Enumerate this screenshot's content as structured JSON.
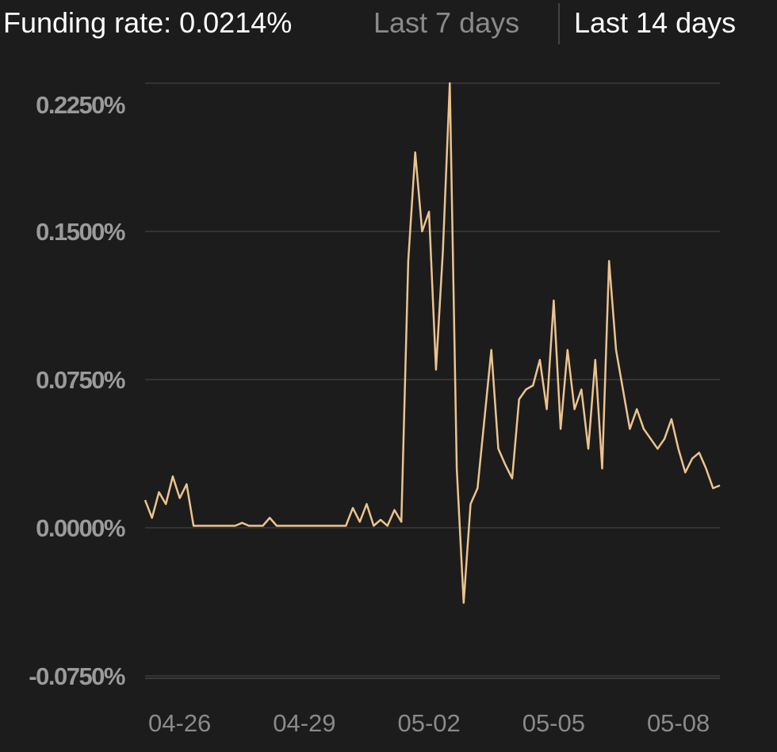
{
  "header": {
    "title": "Funding rate: 0.0214%",
    "buttons": [
      "Last 7 days",
      "Last 14 days"
    ]
  },
  "chart_data": {
    "type": "line",
    "color": "#ecc38e",
    "grid": true,
    "categories": [
      null,
      null,
      null,
      null,
      null,
      "04-26",
      null,
      null,
      null,
      null,
      null,
      null,
      null,
      null,
      null,
      null,
      null,
      null,
      null,
      null,
      null,
      null,
      null,
      "04-29",
      null,
      null,
      null,
      null,
      null,
      null,
      null,
      null,
      null,
      null,
      null,
      null,
      null,
      null,
      null,
      null,
      null,
      "05-02",
      null,
      null,
      null,
      null,
      null,
      null,
      null,
      null,
      null,
      null,
      null,
      null,
      null,
      null,
      null,
      null,
      null,
      "05-05",
      null,
      null,
      null,
      null,
      null,
      null,
      null,
      null,
      null,
      null,
      null,
      null,
      null,
      null,
      null,
      null,
      null,
      "05-08",
      null,
      null,
      null,
      null,
      null,
      null
    ],
    "values": [
      0.014,
      0.005,
      0.018,
      0.012,
      0.026,
      0.015,
      0.022,
      0.001,
      0.001,
      0.001,
      0.001,
      0.001,
      0.001,
      0.001,
      0.0025,
      0.001,
      0.001,
      0.001,
      0.005,
      0.001,
      0.001,
      0.001,
      0.001,
      0.001,
      0.001,
      0.001,
      0.001,
      0.001,
      0.001,
      0.001,
      0.01,
      0.003,
      0.012,
      0.001,
      0.004,
      0.001,
      0.009,
      0.003,
      0.135,
      0.19,
      0.15,
      0.16,
      0.08,
      0.14,
      0.225,
      0.03,
      -0.038,
      0.012,
      0.02,
      0.055,
      0.09,
      0.04,
      0.032,
      0.025,
      0.065,
      0.07,
      0.072,
      0.085,
      0.06,
      0.115,
      0.05,
      0.09,
      0.06,
      0.07,
      0.04,
      0.085,
      0.03,
      0.135,
      0.09,
      0.07,
      0.05,
      0.06,
      0.05,
      0.045,
      0.04,
      0.045,
      0.055,
      0.04,
      0.028,
      0.035,
      0.038,
      0.03,
      0.02,
      0.0214
    ],
    "ylim": [
      -0.075,
      0.225
    ],
    "yticks": [
      {
        "value": -0.075,
        "label": "-0.0750%"
      },
      {
        "value": 0,
        "label": "0.0000%"
      },
      {
        "value": 0.075,
        "label": "0.0750%"
      },
      {
        "value": 0.15,
        "label": "0.1500%"
      },
      {
        "value": 0.225,
        "label": "0.2250%"
      }
    ]
  }
}
